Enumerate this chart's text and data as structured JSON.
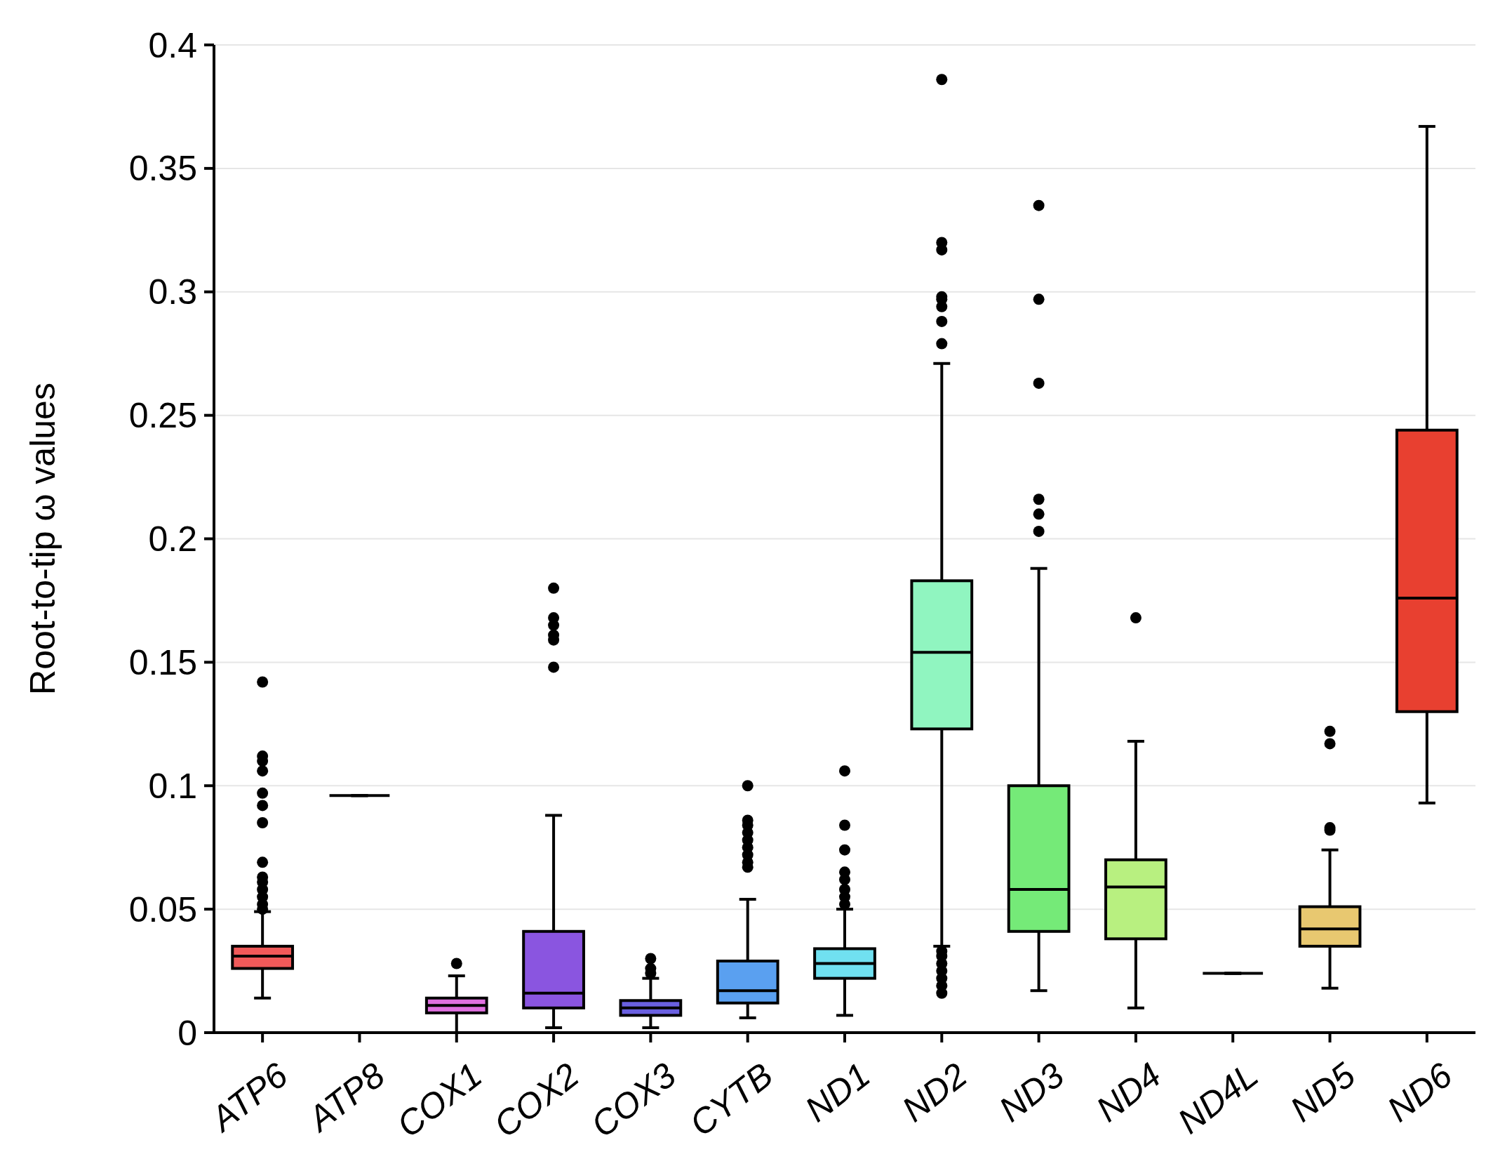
{
  "chart_data": {
    "type": "box",
    "ylabel": "Root-to-tip ω values",
    "categories": [
      "ATP6",
      "ATP8",
      "COX1",
      "COX2",
      "COX3",
      "CYTB",
      "ND1",
      "ND2",
      "ND3",
      "ND4",
      "ND4L",
      "ND5",
      "ND6"
    ],
    "colors": [
      "#f05a5a",
      "#000000",
      "#e070e0",
      "#8a55e0",
      "#6a60e0",
      "#5aa0f0",
      "#70e0f0",
      "#90f5c0",
      "#75ea78",
      "#b8f080",
      "#000000",
      "#e8c870",
      "#e84030"
    ],
    "boxes": [
      {
        "low": 0.014,
        "q1": 0.026,
        "median": 0.031,
        "q3": 0.035,
        "high": 0.049,
        "outliers": [
          0.142,
          0.112,
          0.11,
          0.106,
          0.097,
          0.092,
          0.085,
          0.069,
          0.063,
          0.061,
          0.058,
          0.055,
          0.052,
          0.05
        ]
      },
      {
        "low": 0.096,
        "q1": 0.096,
        "median": 0.096,
        "q3": 0.096,
        "high": 0.096
      },
      {
        "low": 0.0,
        "q1": 0.008,
        "median": 0.011,
        "q3": 0.014,
        "high": 0.023,
        "outliers": [
          0.028
        ]
      },
      {
        "low": 0.002,
        "q1": 0.01,
        "median": 0.016,
        "q3": 0.041,
        "high": 0.088,
        "outliers": [
          0.148,
          0.159,
          0.161,
          0.165,
          0.168,
          0.18
        ]
      },
      {
        "low": 0.002,
        "q1": 0.007,
        "median": 0.01,
        "q3": 0.013,
        "high": 0.022,
        "outliers": [
          0.024,
          0.026,
          0.03
        ]
      },
      {
        "low": 0.006,
        "q1": 0.012,
        "median": 0.017,
        "q3": 0.029,
        "high": 0.054,
        "outliers": [
          0.067,
          0.069,
          0.072,
          0.075,
          0.078,
          0.081,
          0.084,
          0.086,
          0.1
        ]
      },
      {
        "low": 0.007,
        "q1": 0.022,
        "median": 0.028,
        "q3": 0.034,
        "high": 0.05,
        "outliers": [
          0.052,
          0.055,
          0.058,
          0.062,
          0.065,
          0.074,
          0.084,
          0.106
        ]
      },
      {
        "low": 0.035,
        "q1": 0.123,
        "median": 0.154,
        "q3": 0.183,
        "high": 0.271,
        "outliers": [
          0.279,
          0.288,
          0.294,
          0.297,
          0.298,
          0.317,
          0.32,
          0.386,
          0.016,
          0.019,
          0.022,
          0.025,
          0.028,
          0.031,
          0.033
        ]
      },
      {
        "low": 0.017,
        "q1": 0.041,
        "median": 0.058,
        "q3": 0.1,
        "high": 0.188,
        "outliers": [
          0.203,
          0.21,
          0.216,
          0.263,
          0.297,
          0.335
        ]
      },
      {
        "low": 0.01,
        "q1": 0.038,
        "median": 0.059,
        "q3": 0.07,
        "high": 0.118,
        "outliers": [
          0.168
        ]
      },
      {
        "low": 0.024,
        "q1": 0.024,
        "median": 0.024,
        "q3": 0.024,
        "high": 0.024
      },
      {
        "low": 0.018,
        "q1": 0.035,
        "median": 0.042,
        "q3": 0.051,
        "high": 0.074,
        "outliers": [
          0.082,
          0.083,
          0.117,
          0.122
        ]
      },
      {
        "low": 0.093,
        "q1": 0.13,
        "median": 0.176,
        "q3": 0.244,
        "high": 0.367
      }
    ],
    "ylim": [
      0,
      0.4
    ],
    "yticks": [
      0,
      0.05,
      0.1,
      0.15,
      0.2,
      0.25,
      0.3,
      0.35,
      0.4
    ],
    "grid": "y"
  }
}
